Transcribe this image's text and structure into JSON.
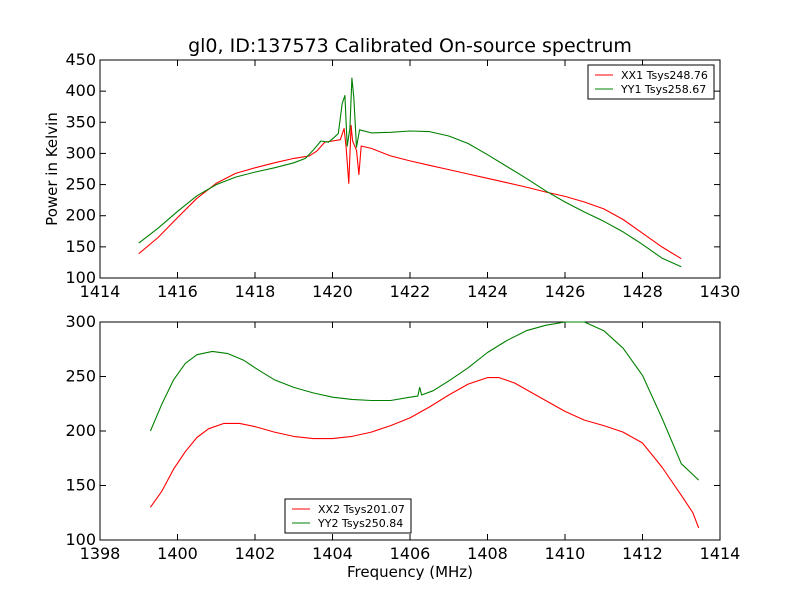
{
  "figure": {
    "title": "gl0, ID:137573 Calibrated On-source spectrum"
  },
  "chart_data": [
    {
      "type": "line",
      "title": "gl0, ID:137573 Calibrated On-source spectrum",
      "xlabel": "",
      "ylabel": "Power in Kelvin",
      "xlim": [
        1414,
        1430
      ],
      "ylim": [
        100,
        450
      ],
      "xticks": [
        1414,
        1416,
        1418,
        1420,
        1422,
        1424,
        1426,
        1428,
        1430
      ],
      "yticks": [
        100,
        150,
        200,
        250,
        300,
        350,
        400,
        450
      ],
      "legend": {
        "position": "top-right"
      },
      "grid": false,
      "series": [
        {
          "name": "XX1 Tsys248.76",
          "color": "#ff0000",
          "points": [
            [
              1415.0,
              139
            ],
            [
              1415.5,
              165
            ],
            [
              1416.0,
              197
            ],
            [
              1416.5,
              228
            ],
            [
              1417.0,
              252
            ],
            [
              1417.5,
              268
            ],
            [
              1418.0,
              277
            ],
            [
              1418.5,
              285
            ],
            [
              1419.0,
              292
            ],
            [
              1419.4,
              296
            ],
            [
              1419.6,
              304
            ],
            [
              1419.8,
              318
            ],
            [
              1420.0,
              320
            ],
            [
              1420.2,
              322
            ],
            [
              1420.3,
              340
            ],
            [
              1420.35,
              310
            ],
            [
              1420.42,
              252
            ],
            [
              1420.48,
              345
            ],
            [
              1420.52,
              320
            ],
            [
              1420.62,
              305
            ],
            [
              1420.68,
              266
            ],
            [
              1420.74,
              312
            ],
            [
              1421.0,
              308
            ],
            [
              1421.5,
              296
            ],
            [
              1422.0,
              288
            ],
            [
              1422.5,
              281
            ],
            [
              1423.0,
              274
            ],
            [
              1423.5,
              267
            ],
            [
              1424.0,
              260
            ],
            [
              1424.5,
              253
            ],
            [
              1425.0,
              246
            ],
            [
              1425.5,
              238
            ],
            [
              1426.0,
              231
            ],
            [
              1426.5,
              222
            ],
            [
              1427.0,
              211
            ],
            [
              1427.5,
              194
            ],
            [
              1428.0,
              172
            ],
            [
              1428.5,
              150
            ],
            [
              1429.0,
              131
            ]
          ]
        },
        {
          "name": "YY1 Tsys258.67",
          "color": "#008000",
          "points": [
            [
              1415.0,
              156
            ],
            [
              1415.5,
              180
            ],
            [
              1416.0,
              207
            ],
            [
              1416.5,
              232
            ],
            [
              1417.0,
              250
            ],
            [
              1417.5,
              262
            ],
            [
              1418.0,
              270
            ],
            [
              1418.5,
              277
            ],
            [
              1419.0,
              285
            ],
            [
              1419.3,
              292
            ],
            [
              1419.5,
              305
            ],
            [
              1419.7,
              320
            ],
            [
              1419.9,
              318
            ],
            [
              1420.05,
              326
            ],
            [
              1420.15,
              332
            ],
            [
              1420.25,
              380
            ],
            [
              1420.32,
              393
            ],
            [
              1420.38,
              312
            ],
            [
              1420.45,
              340
            ],
            [
              1420.5,
              421
            ],
            [
              1420.55,
              390
            ],
            [
              1420.62,
              310
            ],
            [
              1420.7,
              338
            ],
            [
              1421.0,
              333
            ],
            [
              1421.5,
              334
            ],
            [
              1422.0,
              336
            ],
            [
              1422.5,
              335
            ],
            [
              1423.0,
              328
            ],
            [
              1423.5,
              316
            ],
            [
              1424.0,
              298
            ],
            [
              1424.5,
              279
            ],
            [
              1425.0,
              260
            ],
            [
              1425.5,
              240
            ],
            [
              1426.0,
              222
            ],
            [
              1426.5,
              206
            ],
            [
              1427.0,
              191
            ],
            [
              1427.5,
              174
            ],
            [
              1428.0,
              154
            ],
            [
              1428.5,
              132
            ],
            [
              1429.0,
              118
            ]
          ]
        }
      ]
    },
    {
      "type": "line",
      "title": "",
      "xlabel": "Frequency (MHz)",
      "ylabel": "",
      "xlim": [
        1398,
        1414
      ],
      "ylim": [
        100,
        300
      ],
      "xticks": [
        1398,
        1400,
        1402,
        1404,
        1406,
        1408,
        1410,
        1412,
        1414
      ],
      "yticks": [
        100,
        150,
        200,
        250,
        300
      ],
      "legend": {
        "position": "bottom-center"
      },
      "grid": false,
      "series": [
        {
          "name": "XX2 Tsys201.07",
          "color": "#ff0000",
          "points": [
            [
              1399.3,
              130
            ],
            [
              1399.6,
              145
            ],
            [
              1399.9,
              165
            ],
            [
              1400.2,
              181
            ],
            [
              1400.5,
              194
            ],
            [
              1400.8,
              202
            ],
            [
              1401.2,
              207
            ],
            [
              1401.6,
              207
            ],
            [
              1402.0,
              204
            ],
            [
              1402.5,
              199
            ],
            [
              1403.0,
              195
            ],
            [
              1403.5,
              193
            ],
            [
              1404.0,
              193
            ],
            [
              1404.5,
              195
            ],
            [
              1405.0,
              199
            ],
            [
              1405.5,
              205
            ],
            [
              1406.0,
              212
            ],
            [
              1406.5,
              222
            ],
            [
              1407.0,
              233
            ],
            [
              1407.5,
              243
            ],
            [
              1408.0,
              249
            ],
            [
              1408.3,
              249
            ],
            [
              1408.7,
              244
            ],
            [
              1409.0,
              238
            ],
            [
              1409.5,
              228
            ],
            [
              1410.0,
              218
            ],
            [
              1410.5,
              210
            ],
            [
              1411.0,
              205
            ],
            [
              1411.5,
              199
            ],
            [
              1412.0,
              189
            ],
            [
              1412.5,
              167
            ],
            [
              1413.0,
              141
            ],
            [
              1413.3,
              125
            ],
            [
              1413.45,
              111
            ]
          ]
        },
        {
          "name": "YY2 Tsys250.84",
          "color": "#008000",
          "points": [
            [
              1399.3,
              200
            ],
            [
              1399.6,
              225
            ],
            [
              1399.9,
              247
            ],
            [
              1400.2,
              262
            ],
            [
              1400.5,
              270
            ],
            [
              1400.9,
              273
            ],
            [
              1401.3,
              271
            ],
            [
              1401.7,
              265
            ],
            [
              1402.0,
              258
            ],
            [
              1402.5,
              247
            ],
            [
              1403.0,
              240
            ],
            [
              1403.5,
              235
            ],
            [
              1404.0,
              231
            ],
            [
              1404.5,
              229
            ],
            [
              1405.0,
              228
            ],
            [
              1405.5,
              228
            ],
            [
              1406.0,
              231
            ],
            [
              1406.2,
              232
            ],
            [
              1406.25,
              240
            ],
            [
              1406.3,
              233
            ],
            [
              1406.6,
              237
            ],
            [
              1407.0,
              246
            ],
            [
              1407.5,
              258
            ],
            [
              1408.0,
              272
            ],
            [
              1408.5,
              283
            ],
            [
              1409.0,
              292
            ],
            [
              1409.5,
              297
            ],
            [
              1410.0,
              300
            ],
            [
              1410.5,
              300
            ],
            [
              1411.0,
              292
            ],
            [
              1411.5,
              276
            ],
            [
              1412.0,
              251
            ],
            [
              1412.5,
              212
            ],
            [
              1413.0,
              170
            ],
            [
              1413.45,
              155
            ]
          ]
        }
      ]
    }
  ]
}
